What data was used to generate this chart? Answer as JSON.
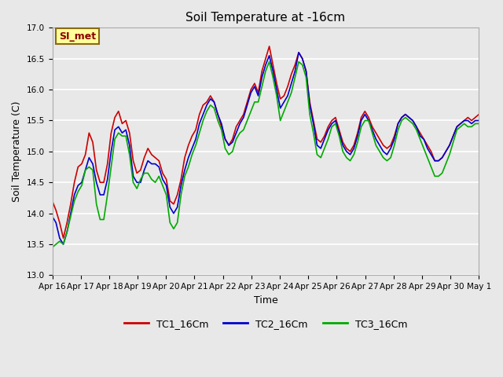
{
  "title": "Soil Temperature at -16cm",
  "xlabel": "Time",
  "ylabel": "Soil Temperature (C)",
  "ylim": [
    13.0,
    17.0
  ],
  "yticks": [
    13.0,
    13.5,
    14.0,
    14.5,
    15.0,
    15.5,
    16.0,
    16.5,
    17.0
  ],
  "plot_bg_color": "#e8e8e8",
  "grid_color": "#ffffff",
  "series": [
    {
      "label": "TC1_16Cm",
      "color": "#cc0000",
      "linewidth": 1.2
    },
    {
      "label": "TC2_16Cm",
      "color": "#0000cc",
      "linewidth": 1.2
    },
    {
      "label": "TC3_16Cm",
      "color": "#00aa00",
      "linewidth": 1.2
    }
  ],
  "annotation_text": "SI_met",
  "annotation_color": "#8b0000",
  "annotation_bg": "#ffff99",
  "annotation_border": "#8b6914",
  "x_tick_labels": [
    "Apr 16",
    "Apr 17",
    "Apr 18",
    "Apr 19",
    "Apr 20",
    "Apr 21",
    "Apr 22",
    "Apr 23",
    "Apr 24",
    "Apr 25",
    "Apr 26",
    "Apr 27",
    "Apr 28",
    "Apr 29",
    "Apr 30",
    "May 1"
  ],
  "figsize": [
    6.4,
    4.8
  ],
  "dpi": 100,
  "tc1": [
    14.2,
    14.05,
    13.85,
    13.6,
    13.85,
    14.15,
    14.5,
    14.75,
    14.8,
    14.95,
    15.3,
    15.15,
    14.7,
    14.5,
    14.5,
    14.8,
    15.3,
    15.55,
    15.65,
    15.45,
    15.5,
    15.3,
    14.85,
    14.65,
    14.7,
    14.9,
    15.05,
    14.95,
    14.9,
    14.85,
    14.65,
    14.55,
    14.2,
    14.15,
    14.3,
    14.55,
    14.9,
    15.1,
    15.25,
    15.35,
    15.6,
    15.75,
    15.8,
    15.9,
    15.8,
    15.6,
    15.4,
    15.2,
    15.1,
    15.2,
    15.4,
    15.5,
    15.6,
    15.8,
    16.0,
    16.1,
    15.95,
    16.3,
    16.5,
    16.7,
    16.4,
    16.1,
    15.85,
    15.9,
    16.05,
    16.25,
    16.4,
    16.6,
    16.5,
    16.3,
    15.8,
    15.5,
    15.2,
    15.15,
    15.25,
    15.4,
    15.5,
    15.55,
    15.35,
    15.15,
    15.05,
    15.0,
    15.1,
    15.3,
    15.55,
    15.65,
    15.55,
    15.4,
    15.3,
    15.2,
    15.1,
    15.05,
    15.1,
    15.25,
    15.45,
    15.55,
    15.6,
    15.55,
    15.5,
    15.4,
    15.3,
    15.2,
    15.1,
    15.0,
    14.85,
    14.85,
    14.9,
    15.0,
    15.1,
    15.25,
    15.4,
    15.45,
    15.5,
    15.55,
    15.5,
    15.55,
    15.6
  ],
  "tc2": [
    13.95,
    13.85,
    13.6,
    13.5,
    13.7,
    14.0,
    14.3,
    14.45,
    14.5,
    14.7,
    14.9,
    14.8,
    14.5,
    14.3,
    14.3,
    14.55,
    15.0,
    15.35,
    15.4,
    15.3,
    15.35,
    15.1,
    14.6,
    14.5,
    14.5,
    14.7,
    14.85,
    14.8,
    14.8,
    14.75,
    14.55,
    14.45,
    14.1,
    14.0,
    14.1,
    14.45,
    14.7,
    14.9,
    15.05,
    15.2,
    15.45,
    15.6,
    15.75,
    15.85,
    15.8,
    15.6,
    15.45,
    15.2,
    15.1,
    15.15,
    15.3,
    15.45,
    15.55,
    15.75,
    15.95,
    16.05,
    15.9,
    16.2,
    16.4,
    16.55,
    16.3,
    16.0,
    15.7,
    15.8,
    15.9,
    16.1,
    16.3,
    16.6,
    16.5,
    16.3,
    15.75,
    15.45,
    15.1,
    15.05,
    15.2,
    15.35,
    15.45,
    15.5,
    15.3,
    15.1,
    15.0,
    14.95,
    15.05,
    15.25,
    15.5,
    15.6,
    15.5,
    15.35,
    15.2,
    15.1,
    15.0,
    14.95,
    15.05,
    15.2,
    15.45,
    15.55,
    15.6,
    15.55,
    15.5,
    15.4,
    15.25,
    15.2,
    15.05,
    14.95,
    14.85,
    14.85,
    14.9,
    15.0,
    15.1,
    15.25,
    15.4,
    15.45,
    15.5,
    15.5,
    15.45,
    15.5,
    15.5
  ],
  "tc3": [
    13.45,
    13.5,
    13.55,
    13.5,
    13.7,
    13.95,
    14.2,
    14.35,
    14.45,
    14.7,
    14.75,
    14.7,
    14.15,
    13.9,
    13.9,
    14.3,
    14.75,
    15.2,
    15.3,
    15.25,
    15.25,
    14.95,
    14.5,
    14.4,
    14.55,
    14.65,
    14.65,
    14.55,
    14.5,
    14.6,
    14.45,
    14.3,
    13.85,
    13.75,
    13.85,
    14.3,
    14.6,
    14.75,
    14.95,
    15.1,
    15.3,
    15.5,
    15.65,
    15.75,
    15.7,
    15.5,
    15.35,
    15.05,
    14.95,
    15.0,
    15.2,
    15.3,
    15.35,
    15.5,
    15.65,
    15.8,
    15.8,
    16.05,
    16.3,
    16.45,
    16.2,
    15.9,
    15.5,
    15.65,
    15.8,
    15.95,
    16.2,
    16.45,
    16.4,
    16.2,
    15.6,
    15.3,
    14.95,
    14.9,
    15.05,
    15.2,
    15.4,
    15.45,
    15.25,
    15.0,
    14.9,
    14.85,
    14.95,
    15.15,
    15.4,
    15.5,
    15.5,
    15.3,
    15.1,
    15.0,
    14.9,
    14.85,
    14.9,
    15.1,
    15.35,
    15.5,
    15.55,
    15.5,
    15.45,
    15.35,
    15.2,
    15.05,
    14.9,
    14.75,
    14.6,
    14.6,
    14.65,
    14.8,
    14.95,
    15.15,
    15.35,
    15.4,
    15.45,
    15.4,
    15.4,
    15.45,
    15.45
  ]
}
